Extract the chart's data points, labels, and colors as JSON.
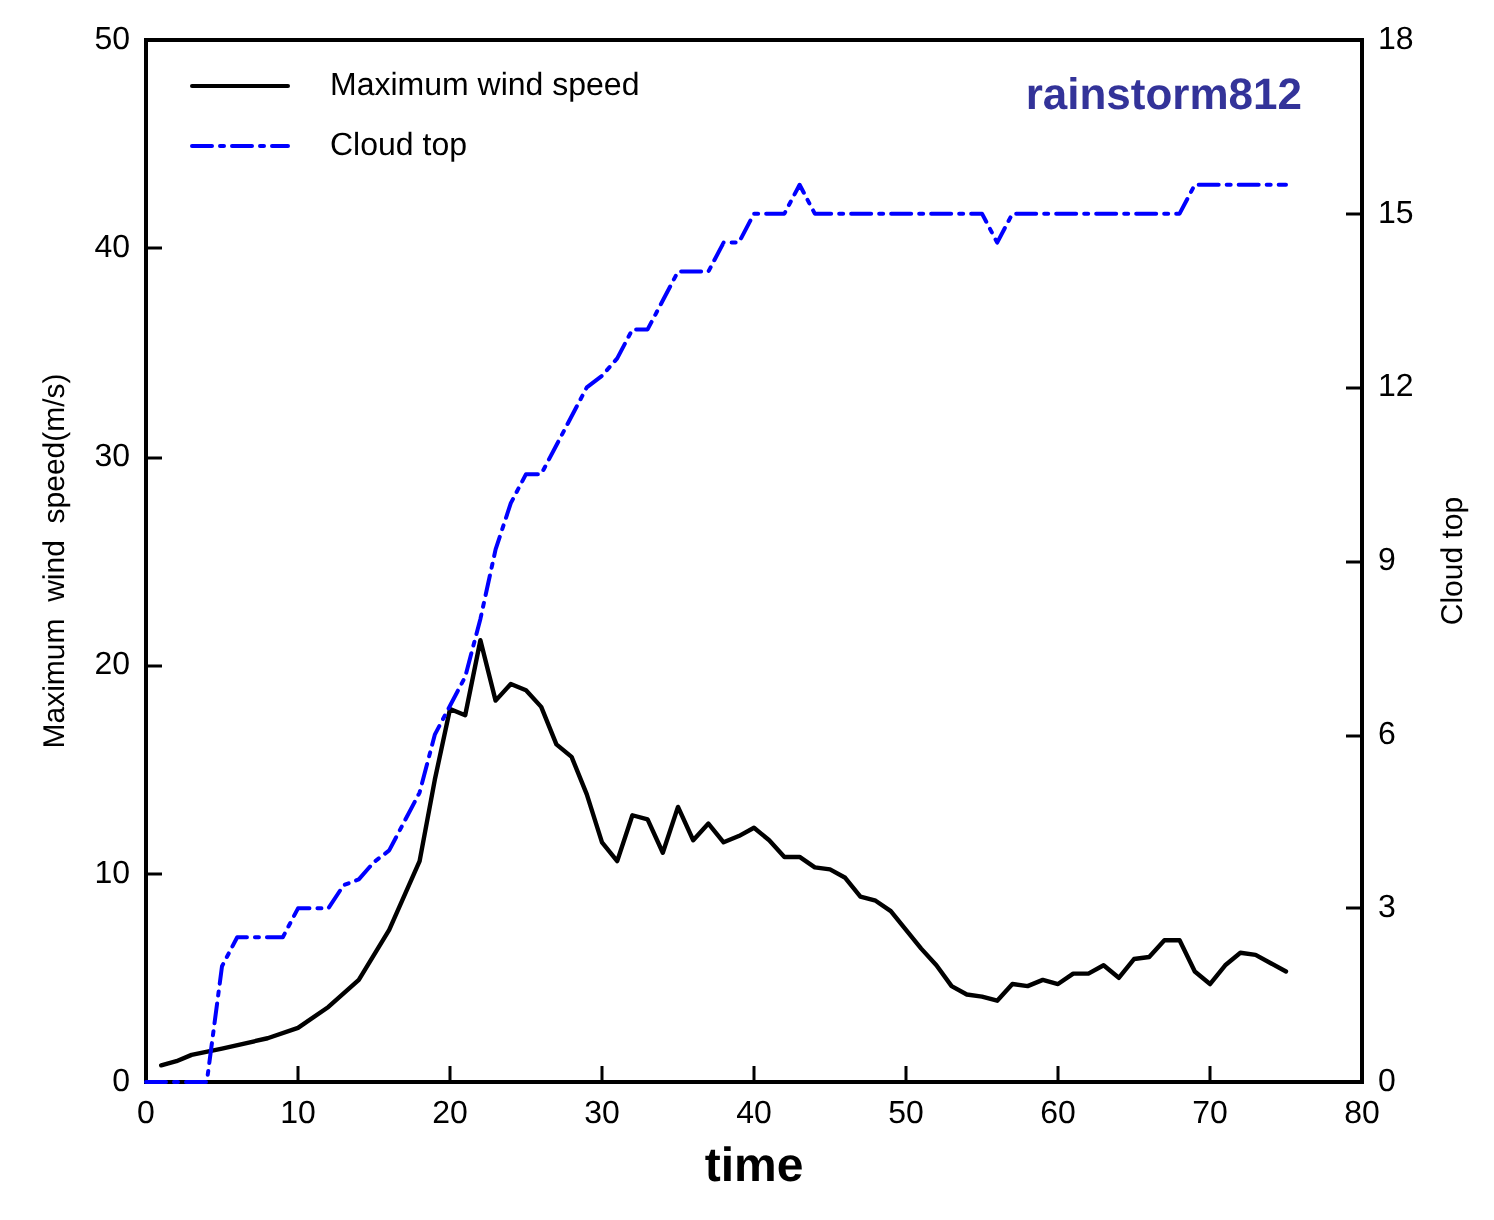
{
  "chart_data": {
    "type": "line",
    "xlabel": "time",
    "ylabel": "Maximum  wind  speed(m/s)",
    "y2label": "Cloud top",
    "annotations": [
      "rainstorm812"
    ],
    "xlim": [
      0,
      80
    ],
    "xticks": [
      0,
      10,
      20,
      30,
      40,
      50,
      60,
      70,
      80
    ],
    "ylim": [
      0,
      50
    ],
    "yticks": [
      0,
      10,
      20,
      30,
      40,
      50
    ],
    "y2lim": [
      0,
      18
    ],
    "y2ticks": [
      0,
      3,
      6,
      9,
      12,
      15,
      18
    ],
    "grid": false,
    "legend": "top left",
    "marker": "none",
    "series": [
      {
        "name": "Maximum wind speed",
        "color": "#000000",
        "line_style": "solid",
        "x": [
          1,
          2,
          3,
          5,
          8,
          10,
          12,
          14,
          16,
          18,
          19,
          20,
          21,
          22,
          23,
          24,
          25,
          26,
          27,
          28,
          29,
          30,
          31,
          32,
          33,
          34,
          35,
          36,
          37,
          38,
          39,
          40,
          41,
          42,
          43,
          44,
          45,
          46,
          47,
          48,
          49,
          50,
          51,
          52,
          53,
          54,
          55,
          56,
          57,
          58,
          59,
          60,
          61,
          62,
          63,
          64,
          65,
          66,
          67,
          68,
          69,
          70,
          71,
          72,
          73,
          74,
          75
        ],
        "values": [
          0.8,
          1.0,
          1.3,
          1.6,
          2.1,
          2.6,
          3.6,
          4.9,
          7.3,
          10.6,
          14.5,
          17.9,
          17.6,
          21.2,
          18.3,
          19.1,
          18.8,
          18.0,
          16.2,
          15.6,
          13.8,
          11.5,
          10.6,
          12.8,
          12.6,
          11.0,
          13.2,
          11.6,
          12.4,
          11.5,
          11.8,
          12.2,
          11.6,
          10.8,
          10.8,
          10.3,
          10.2,
          9.8,
          8.9,
          8.7,
          8.2,
          7.3,
          6.4,
          5.6,
          4.6,
          4.2,
          4.1,
          3.9,
          4.7,
          4.6,
          4.9,
          4.7,
          5.2,
          5.2,
          5.6,
          5.0,
          5.9,
          6.0,
          6.8,
          6.8,
          5.3,
          4.7,
          5.6,
          6.2,
          6.1,
          5.7,
          5.3
        ]
      },
      {
        "name": "Cloud top",
        "color": "#0000ff",
        "line_style": "dashed",
        "axis": "y2",
        "x": [
          0,
          4,
          5,
          6,
          9,
          10,
          12,
          13,
          14,
          15,
          16,
          17,
          18,
          19,
          20,
          21,
          22,
          23,
          24,
          25,
          26,
          27,
          28,
          29,
          30,
          31,
          32,
          33,
          34,
          35,
          36,
          37,
          38,
          39,
          40,
          42,
          43,
          44,
          55,
          56,
          57,
          68,
          69,
          75
        ],
        "values": [
          0,
          0,
          2.0,
          2.5,
          2.5,
          3.0,
          3.0,
          3.4,
          3.5,
          3.8,
          4.0,
          4.5,
          5.0,
          6.0,
          6.5,
          7.0,
          8.0,
          9.2,
          10.0,
          10.5,
          10.5,
          11.0,
          11.5,
          12.0,
          12.2,
          12.5,
          13.0,
          13.0,
          13.5,
          14.0,
          14.0,
          14.0,
          14.5,
          14.5,
          15.0,
          15.0,
          15.5,
          15.0,
          15.0,
          14.5,
          15.0,
          15.0,
          15.5,
          15.5
        ]
      }
    ]
  }
}
